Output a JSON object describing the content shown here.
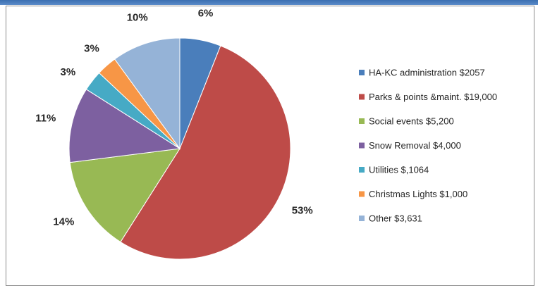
{
  "chart_data": {
    "type": "pie",
    "slices": [
      {
        "legend": "HA-KC administration $2057",
        "percent": 6,
        "label": "6%",
        "color": "#4a7ebb"
      },
      {
        "legend": "Parks & points &maint. $19,000",
        "percent": 53,
        "label": "53%",
        "color": "#be4b48"
      },
      {
        "legend": "Social events $5,200",
        "percent": 14,
        "label": "14%",
        "color": "#98b954"
      },
      {
        "legend": "Snow Removal $4,000",
        "percent": 11,
        "label": "11%",
        "color": "#7d60a0"
      },
      {
        "legend": "Utilities $,1064",
        "percent": 3,
        "label": "3%",
        "color": "#46aac5"
      },
      {
        "legend": "Christmas Lights $1,000",
        "percent": 3,
        "label": "3%",
        "color": "#f79646"
      },
      {
        "legend": "Other $3,631",
        "percent": 10,
        "label": "10%",
        "color": "#95b3d7"
      }
    ],
    "legend_position": "right",
    "start_angle_deg": 0,
    "direction": "clockwise"
  }
}
